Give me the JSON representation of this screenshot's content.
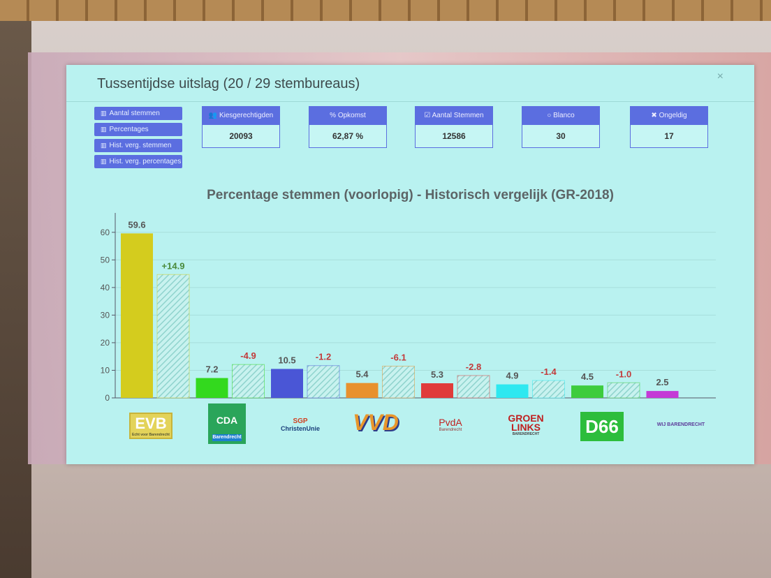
{
  "modal": {
    "title": "Tussentijdse uitslag (20 / 29 stembureaus)",
    "close_icon": "×"
  },
  "side_buttons": [
    {
      "label": "Aantal stemmen",
      "icon": "bar-chart-icon"
    },
    {
      "label": "Percentages",
      "icon": "bar-chart-icon"
    },
    {
      "label": "Hist. verg. stemmen",
      "icon": "bar-chart-icon"
    },
    {
      "label": "Hist. verg. percentages",
      "icon": "bar-chart-icon"
    }
  ],
  "stats": [
    {
      "label": "Kiesgerechtigden",
      "value": "20093",
      "icon": "users-icon"
    },
    {
      "label": "% Opkomst",
      "value": "62,87 %",
      "icon": "percent-icon"
    },
    {
      "label": "Aantal Stemmen",
      "value": "12586",
      "icon": "check-square-icon"
    },
    {
      "label": "Blanco",
      "value": "30",
      "icon": "circle-icon"
    },
    {
      "label": "Ongeldig",
      "value": "17",
      "icon": "times-icon"
    }
  ],
  "parties": {
    "evb": {
      "name": "EVB",
      "tagline": "Echt voor Barendrecht"
    },
    "cda": {
      "name": "CDA",
      "tagline": "Barendrecht"
    },
    "sgp": {
      "line1": "SGP",
      "line2": "ChristenUnie"
    },
    "vvd": {
      "name": "VVD"
    },
    "pvda": {
      "name": "PvdA",
      "tagline": "Barendrecht"
    },
    "gl": {
      "line1": "GROEN",
      "line2": "LINKS",
      "tagline": "BARENDRECHT"
    },
    "d66": {
      "name": "D66"
    },
    "wij": {
      "name": "WIJ BARENDRECHT"
    }
  },
  "chart_data": {
    "type": "bar",
    "title": "Percentage stemmen (voorlopig) - Historisch vergelijk (GR-2018)",
    "ylim": [
      0,
      65
    ],
    "yticks": [
      0,
      10,
      20,
      30,
      40,
      50,
      60
    ],
    "grid": true,
    "categories": [
      "EVB",
      "CDA",
      "SGP/ChristenUnie",
      "VVD",
      "PvdA",
      "GroenLinks",
      "D66",
      "Wij Barendrecht"
    ],
    "series": [
      {
        "values": [
          59.6,
          7.2,
          10.5,
          5.4,
          5.3,
          4.9,
          4.5,
          2.5
        ],
        "colors": [
          "#d4cc1e",
          "#33d91e",
          "#4a56d6",
          "#e8912e",
          "#e03b3b",
          "#2ee8f0",
          "#3dcc3d",
          "#c43ad6"
        ]
      },
      {
        "values": [
          44.7,
          12.1,
          11.7,
          11.5,
          8.1,
          6.3,
          5.5,
          null
        ],
        "diff_labels": [
          "+14.9",
          "-4.9",
          "-1.2",
          "-6.1",
          "-2.8",
          "-1.4",
          "-1.0",
          ""
        ],
        "style": "hatched"
      }
    ]
  }
}
